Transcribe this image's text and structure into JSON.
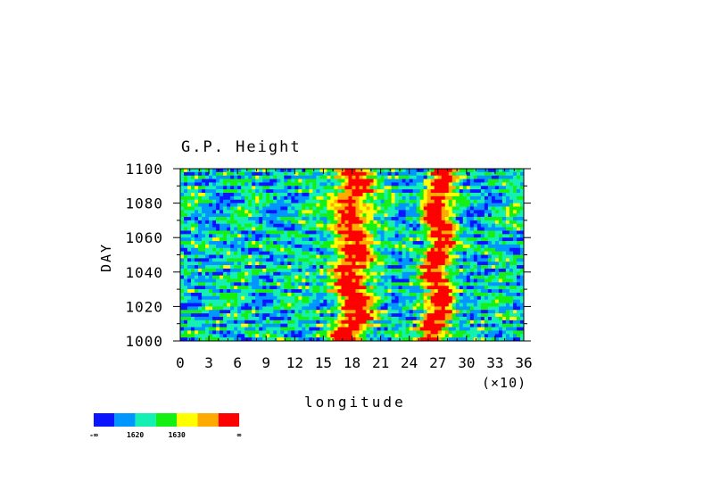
{
  "chart_data": {
    "type": "heatmap",
    "title": "G.P. Height",
    "xlabel": "longitude",
    "ylabel": "DAY",
    "x_multiplier_label": "(×10)",
    "x_ticks": [
      "0",
      "3",
      "6",
      "9",
      "12",
      "15",
      "18",
      "21",
      "24",
      "27",
      "30",
      "33",
      "36"
    ],
    "y_ticks": [
      "1000",
      "1020",
      "1040",
      "1060",
      "1080",
      "1100"
    ],
    "xlim": [
      0,
      36
    ],
    "ylim": [
      1000,
      1100
    ],
    "high_bands_longitude": [
      18,
      27
    ],
    "colorbar": {
      "colors": [
        "#0a14ff",
        "#0096ff",
        "#14f0b4",
        "#14f014",
        "#ffff00",
        "#ffaa00",
        "#ff0000"
      ],
      "labels": [
        "-∞",
        "1620",
        "1630",
        "∞"
      ]
    }
  }
}
